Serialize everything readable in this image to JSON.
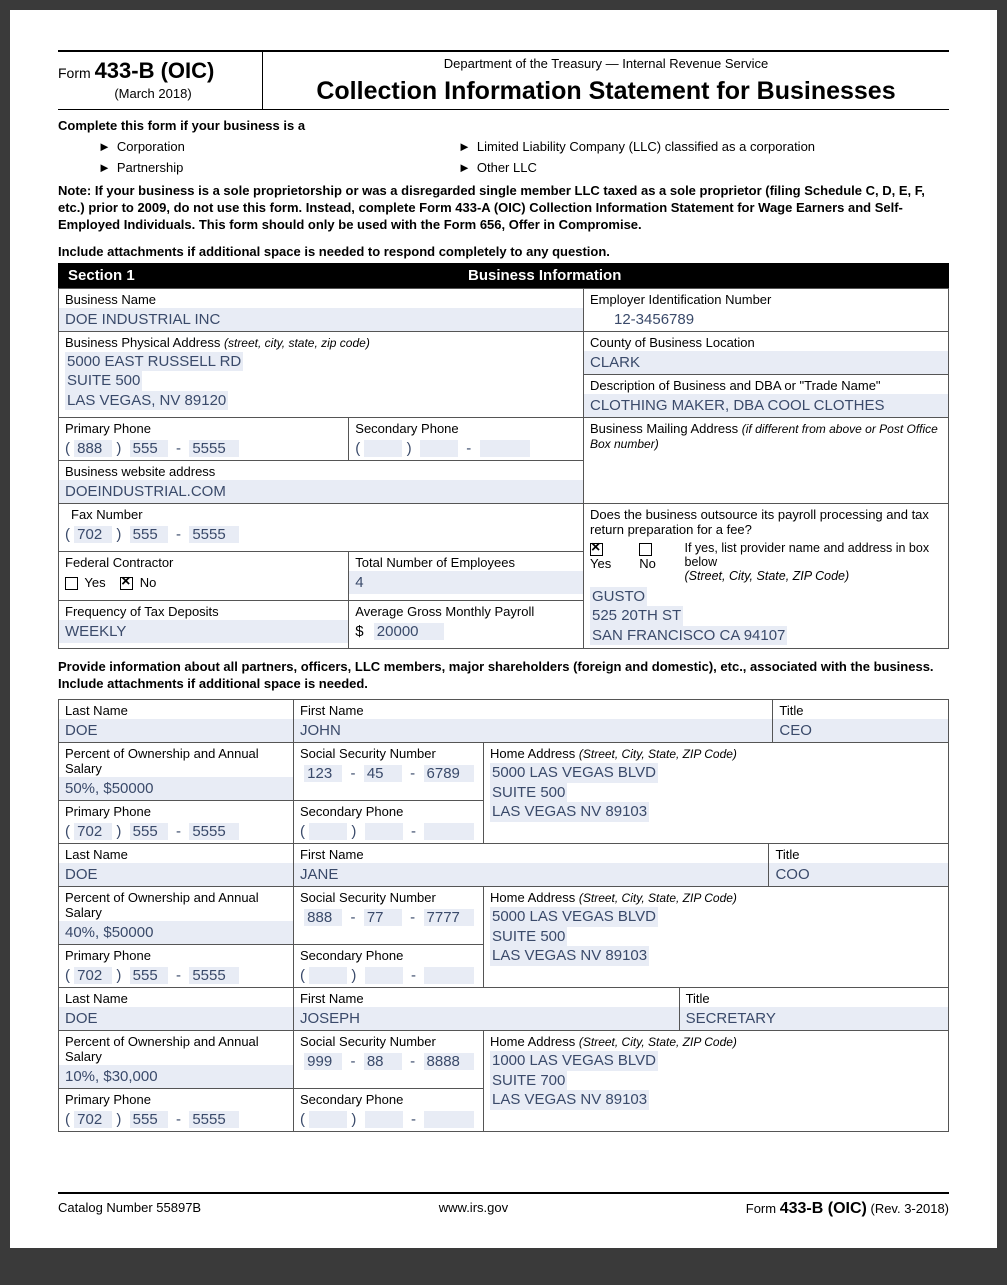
{
  "header": {
    "form_word": "Form",
    "form_number": "433-B (OIC)",
    "form_date": "(March 2018)",
    "dept": "Department of the Treasury — Internal Revenue Service",
    "title": "Collection Information Statement for Businesses"
  },
  "instructions": {
    "complete_if": "Complete this form if your business is a",
    "types": [
      "Corporation",
      "Partnership",
      "Limited Liability Company (LLC) classified as a corporation",
      "Other LLC"
    ],
    "note": "Note: If your business is a sole proprietorship or was a disregarded single member LLC taxed as a sole proprietor (filing Schedule C, D, E, F, etc.) prior to 2009, do not use this form. Instead, complete Form 433-A (OIC) Collection Information Statement for Wage Earners and Self-Employed Individuals. This form should only be used with the Form 656, Offer in Compromise.",
    "attach": "Include attachments if additional space is needed to respond completely to any question."
  },
  "section1": {
    "num": "Section 1",
    "title": "Business Information",
    "labels": {
      "business_name": "Business Name",
      "ein": "Employer Identification Number",
      "address": "Business Physical Address",
      "address_hint": "(street, city, state, zip code)",
      "county": "County of Business Location",
      "desc": "Description of Business and DBA or \"Trade Name\"",
      "primary_phone": "Primary Phone",
      "secondary_phone": "Secondary Phone",
      "mailing": "Business Mailing Address",
      "mailing_hint": "(if different from above or Post Office Box number)",
      "website": "Business website address",
      "fax": "Fax Number",
      "outsource_q": "Does the business outsource its payroll processing and tax return preparation for a fee?",
      "yes": "Yes",
      "no": "No",
      "outsource_hint1": "If yes, list provider name and address in box below",
      "outsource_hint2": "(Street, City, State, ZIP Code)",
      "fed_contractor": "Federal Contractor",
      "employees": "Total Number of Employees",
      "freq": "Frequency of Tax Deposits",
      "payroll": "Average Gross Monthly Payroll"
    },
    "values": {
      "business_name": "DOE INDUSTRIAL INC",
      "ein": "12-3456789",
      "address_l1": "5000  EAST RUSSELL RD",
      "address_l2": "SUITE 500",
      "address_l3": "LAS VEGAS, NV 89120",
      "county": "CLARK",
      "desc": "CLOTHING MAKER, DBA COOL CLOTHES",
      "primary_area": "888",
      "primary_pre": "555",
      "primary_num": "5555",
      "website": "DOEINDUSTRIAL.COM",
      "fax_area": "702",
      "fax_pre": "555",
      "fax_num": "5555",
      "outsource_yes": true,
      "outsource_no": false,
      "provider_l1": "GUSTO",
      "provider_l2": "525 20TH ST",
      "provider_l3": "SAN FRANCISCO CA 94107",
      "fc_yes": false,
      "fc_no": true,
      "employees": "4",
      "freq": "WEEKLY",
      "payroll": "20000"
    }
  },
  "partners": {
    "intro": "Provide information about all partners, officers, LLC members, major shareholders (foreign and domestic), etc., associated with the business. Include attachments if additional space is needed.",
    "labels": {
      "last": "Last Name",
      "first": "First Name",
      "title": "Title",
      "pct": "Percent of Ownership and Annual Salary",
      "ssn": "Social Security Number",
      "home": "Home Address",
      "home_hint": "(Street, City, State, ZIP Code)",
      "pphone": "Primary Phone",
      "sphone": "Secondary Phone"
    },
    "people": [
      {
        "last": "DOE",
        "first": "JOHN",
        "title": "CEO",
        "pct": "50%, $50000",
        "ssn1": "123",
        "ssn2": "45",
        "ssn3": "6789",
        "addr1": "5000 LAS VEGAS BLVD",
        "addr2": "SUITE 500",
        "addr3": "LAS VEGAS NV 89103",
        "parea": "702",
        "ppre": "555",
        "pnum": "5555"
      },
      {
        "last": "DOE",
        "first": "JANE",
        "title": "COO",
        "pct": "40%, $50000",
        "ssn1": "888",
        "ssn2": "77",
        "ssn3": "7777",
        "addr1": "5000 LAS VEGAS BLVD",
        "addr2": "SUITE 500",
        "addr3": "LAS VEGAS NV 89103",
        "parea": "702",
        "ppre": "555",
        "pnum": "5555"
      },
      {
        "last": "DOE",
        "first": "JOSEPH",
        "title": "SECRETARY",
        "pct": "10%, $30,000",
        "ssn1": "999",
        "ssn2": "88",
        "ssn3": "8888",
        "addr1": "1000 LAS VEGAS BLVD",
        "addr2": "SUITE 700",
        "addr3": "LAS VEGAS NV 89103",
        "parea": "702",
        "ppre": "555",
        "pnum": "5555"
      }
    ]
  },
  "footer": {
    "catalog": "Catalog Number 55897B",
    "url": "www.irs.gov",
    "form_word": "Form",
    "form_num": "433-B (OIC)",
    "rev": "(Rev. 3-2018)"
  }
}
